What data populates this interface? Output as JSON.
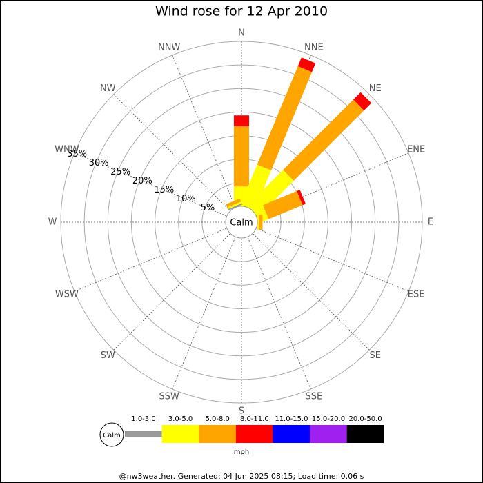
{
  "chart_data": {
    "type": "windrose",
    "title": "Wind rose for 12 Apr 2010",
    "categories": [
      "N",
      "NNE",
      "NE",
      "ENE",
      "E",
      "ESE",
      "SE",
      "SSE",
      "S",
      "SSW",
      "SW",
      "WSW",
      "W",
      "WNW",
      "NW",
      "NNW"
    ],
    "series": [
      {
        "name": "1.0-3.0",
        "color": "#999999",
        "values": [
          0,
          0,
          0,
          0,
          0,
          0,
          0,
          0,
          0,
          0,
          0,
          0,
          0,
          0,
          0,
          0.3
        ]
      },
      {
        "name": "3.0-5.0",
        "color": "#ffff00",
        "values": [
          4.2,
          9.2,
          10.7,
          2.2,
          0.3,
          0,
          0,
          0,
          0,
          0,
          0,
          0,
          0,
          0,
          0,
          0.4
        ]
      },
      {
        "name": "5.0-8.0",
        "color": "#ffa500",
        "values": [
          12.8,
          22.6,
          21.1,
          7.8,
          0.8,
          0,
          0,
          0,
          0,
          0,
          0,
          0,
          0,
          0,
          0,
          0.7
        ]
      },
      {
        "name": "8.0-11.0",
        "color": "#ff0000",
        "values": [
          2.3,
          2.0,
          2.2,
          0.7,
          0,
          0,
          0,
          0,
          0,
          0,
          0,
          0,
          0,
          0,
          0,
          0
        ]
      },
      {
        "name": "11.0-15.0",
        "color": "#0000ff",
        "values": [
          0,
          0,
          0,
          0,
          0,
          0,
          0,
          0,
          0,
          0,
          0,
          0,
          0,
          0,
          0,
          0
        ]
      },
      {
        "name": "15.0-20.0",
        "color": "#a020f0",
        "values": [
          0,
          0,
          0,
          0,
          0,
          0,
          0,
          0,
          0,
          0,
          0,
          0,
          0,
          0,
          0,
          0
        ]
      },
      {
        "name": "20.0-50.0",
        "color": "#000000",
        "values": [
          0,
          0,
          0,
          0,
          0,
          0,
          0,
          0,
          0,
          0,
          0,
          0,
          0,
          0,
          0,
          0
        ]
      }
    ],
    "rlim": [
      0,
      35
    ],
    "rticks": [
      {
        "value": 5,
        "label": "5%"
      },
      {
        "value": 10,
        "label": "10%"
      },
      {
        "value": 15,
        "label": "15%"
      },
      {
        "value": 20,
        "label": "20%"
      },
      {
        "value": 25,
        "label": "25%"
      },
      {
        "value": 30,
        "label": "30%"
      },
      {
        "value": 35,
        "label": "35%"
      }
    ],
    "calm_label": "Calm",
    "unit": "mph",
    "footer": "@nw3weather. Generated: 04 Jun 2025 08:15; Load time: 0.06 s"
  }
}
